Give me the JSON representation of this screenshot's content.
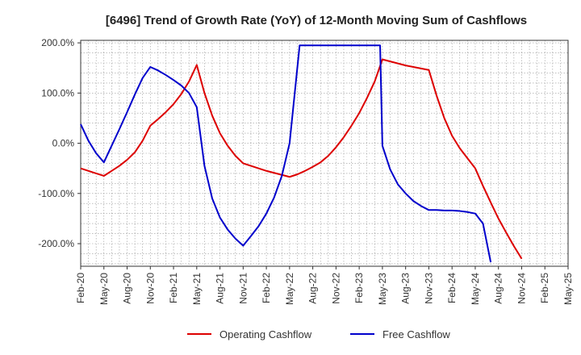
{
  "chart_data": {
    "type": "line",
    "title": "[6496]  Trend of Growth Rate (YoY) of 12-Month Moving Sum of Cashflows",
    "xlabel": "",
    "ylabel": "",
    "ylim": [
      -245,
      205
    ],
    "yticks": [
      {
        "value": 200,
        "label": "200.0%"
      },
      {
        "value": 100,
        "label": "100.0%"
      },
      {
        "value": 0,
        "label": "0.0%"
      },
      {
        "value": -100,
        "label": "-100.0%"
      },
      {
        "value": -200,
        "label": "-200.0%"
      }
    ],
    "xticks": [
      "Feb-20",
      "May-20",
      "Aug-20",
      "Nov-20",
      "Feb-21",
      "May-21",
      "Aug-21",
      "Nov-21",
      "Feb-22",
      "May-22",
      "Aug-22",
      "Nov-22",
      "Feb-23",
      "May-23",
      "Aug-23",
      "Nov-23",
      "Feb-24",
      "May-24",
      "Aug-24",
      "Nov-24",
      "Feb-25",
      "May-25"
    ],
    "grid": true,
    "legend_position": "bottom",
    "series": [
      {
        "name": "Operating Cashflow",
        "color": "#dd0000",
        "x": [
          "Feb-20",
          "Mar-20",
          "Apr-20",
          "May-20",
          "Jun-20",
          "Jul-20",
          "Aug-20",
          "Sep-20",
          "Oct-20",
          "Nov-20",
          "Dec-20",
          "Jan-21",
          "Feb-21",
          "Mar-21",
          "Apr-21",
          "May-21",
          "Jun-21",
          "Jul-21",
          "Aug-21",
          "Sep-21",
          "Oct-21",
          "Nov-21",
          "Dec-21",
          "Jan-22",
          "Feb-22",
          "Mar-22",
          "Apr-22",
          "May-22",
          "Jun-22",
          "Jul-22",
          "Aug-22",
          "Sep-22",
          "Oct-22",
          "Nov-22",
          "Dec-22",
          "Jan-23",
          "Feb-23",
          "Mar-23",
          "Apr-23",
          "May-23",
          "Jun-23",
          "Jul-23",
          "Aug-23",
          "Sep-23",
          "Oct-23",
          "Nov-23",
          "Dec-23",
          "Jan-24",
          "Feb-24",
          "Mar-24",
          "Apr-24",
          "May-24",
          "Jun-24",
          "Jul-24",
          "Aug-24",
          "Sep-24",
          "Oct-24",
          "Nov-24"
        ],
        "values": [
          -50,
          -55,
          -60,
          -65,
          -55,
          -45,
          -33,
          -18,
          5,
          35,
          48,
          62,
          78,
          98,
          123,
          156,
          100,
          55,
          20,
          -5,
          -25,
          -40,
          -45,
          -50,
          -55,
          -59,
          -63,
          -67,
          -62,
          -55,
          -47,
          -38,
          -25,
          -8,
          12,
          35,
          60,
          90,
          123,
          167,
          163,
          159,
          155,
          152,
          149,
          146,
          95,
          50,
          15,
          -10,
          -30,
          -50,
          -85,
          -118,
          -150,
          -178,
          -205,
          -230
        ],
        "ordinal": [
          0,
          1,
          2,
          3,
          4,
          5,
          6,
          7,
          8,
          9,
          10,
          11,
          12,
          13,
          14,
          15,
          16,
          17,
          18,
          19,
          20,
          21,
          22,
          23,
          24,
          25,
          26,
          27,
          28,
          29,
          30,
          31,
          32,
          33,
          34,
          35,
          36,
          37,
          38,
          39,
          40,
          41,
          42,
          43,
          44,
          45,
          46,
          47,
          48,
          49,
          50,
          51,
          52,
          53,
          54,
          55,
          56,
          57
        ]
      },
      {
        "name": "Free Cashflow",
        "color": "#0000cc",
        "x": [
          "Feb-20",
          "Mar-20",
          "Apr-20",
          "May-20",
          "Jun-20",
          "Jul-20",
          "Aug-20",
          "Sep-20",
          "Oct-20",
          "Nov-20",
          "Dec-20",
          "Jan-21",
          "Feb-21",
          "Mar-21",
          "Apr-21",
          "May-21",
          "Jun-21",
          "Jul-21",
          "Aug-21",
          "Sep-21",
          "Oct-21",
          "Nov-21",
          "Dec-21",
          "Jan-22",
          "Feb-22",
          "Mar-22",
          "Apr-22",
          "May-22",
          "Jun-22",
          "Apr-23",
          "May-23",
          "Jun-23",
          "Jul-23",
          "Aug-23",
          "Sep-23",
          "Oct-23",
          "Nov-23",
          "Dec-23",
          "Jan-24",
          "Feb-24",
          "Mar-24",
          "Apr-24",
          "May-24",
          "Jun-24",
          "Jul-24"
        ],
        "values": [
          38,
          5,
          -20,
          -38,
          -5,
          28,
          62,
          97,
          130,
          152,
          145,
          136,
          126,
          115,
          100,
          72,
          -45,
          -110,
          -148,
          -172,
          -190,
          -204,
          -185,
          -165,
          -140,
          -108,
          -65,
          0,
          195,
          195,
          -5,
          -52,
          -82,
          -100,
          -115,
          -125,
          -133,
          -133,
          -134,
          -134,
          -135,
          -137,
          -140,
          -160,
          -237
        ],
        "ordinal": [
          0,
          1,
          2,
          3,
          4,
          5,
          6,
          7,
          8,
          9,
          10,
          11,
          12,
          13,
          14,
          15,
          16,
          17,
          18,
          19,
          20,
          21,
          22,
          23,
          24,
          25,
          26,
          27,
          28.3,
          38.7,
          39,
          40,
          41,
          42,
          43,
          44,
          45,
          46,
          47,
          48,
          49,
          50,
          51,
          52,
          53
        ]
      }
    ]
  }
}
